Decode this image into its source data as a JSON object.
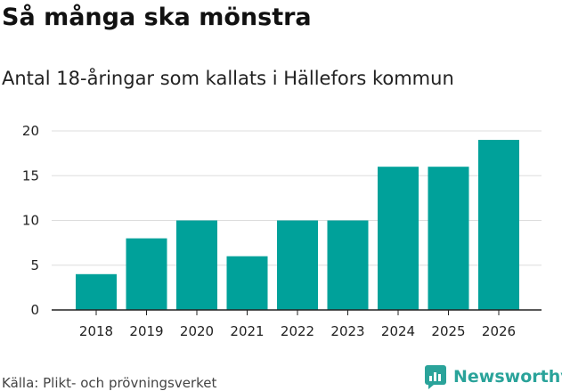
{
  "header": {
    "title": "Så många ska mönstra",
    "subtitle": "Antal 18-åringar som kallats i Hällefors kommun"
  },
  "footer": {
    "source": "Källa: Plikt- och prövningsverket",
    "brand": "Newsworthy"
  },
  "colors": {
    "bar": "#00a19a",
    "grid": "#dddddd",
    "axis": "#222222",
    "brand": "#2aa39a"
  },
  "chart_data": {
    "type": "bar",
    "title": "Så många ska mönstra",
    "subtitle": "Antal 18-åringar som kallats i Hällefors kommun",
    "xlabel": "",
    "ylabel": "",
    "categories": [
      "2018",
      "2019",
      "2020",
      "2021",
      "2022",
      "2023",
      "2024",
      "2025",
      "2026"
    ],
    "values": [
      4,
      8,
      10,
      6,
      10,
      10,
      16,
      16,
      19
    ],
    "ylim": [
      0,
      20
    ],
    "yticks": [
      0,
      5,
      10,
      15,
      20
    ],
    "ytick_labels": [
      "0",
      "5",
      "10",
      "15",
      "20"
    ],
    "grid": true,
    "legend": "none"
  }
}
